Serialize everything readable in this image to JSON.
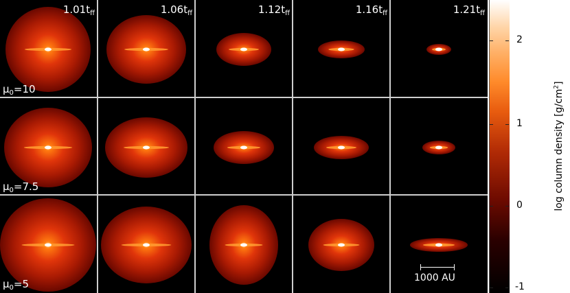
{
  "columns": [
    {
      "time_value": "1.01",
      "time_sub": "ff"
    },
    {
      "time_value": "1.06",
      "time_sub": "ff"
    },
    {
      "time_value": "1.12",
      "time_sub": "ff"
    },
    {
      "time_value": "1.16",
      "time_sub": "ff"
    },
    {
      "time_value": "1.21",
      "time_sub": "ff"
    }
  ],
  "rows": [
    {
      "mu_value": "10"
    },
    {
      "mu_value": "7.5"
    },
    {
      "mu_value": "5"
    }
  ],
  "time_prefix": "t",
  "mu_symbol": "μ",
  "mu_sub": "0",
  "scale_bar_label": "1000 AU",
  "colorbar": {
    "title_prefix": "log column density [g/cm",
    "title_sup": "2",
    "title_suffix": "]",
    "ticks": [
      "2",
      "1",
      "0",
      "-1"
    ],
    "colors": {
      "low": "#000000",
      "mid": "#b02a05",
      "high": "#ff8a2a",
      "top": "#ffffff"
    }
  }
}
